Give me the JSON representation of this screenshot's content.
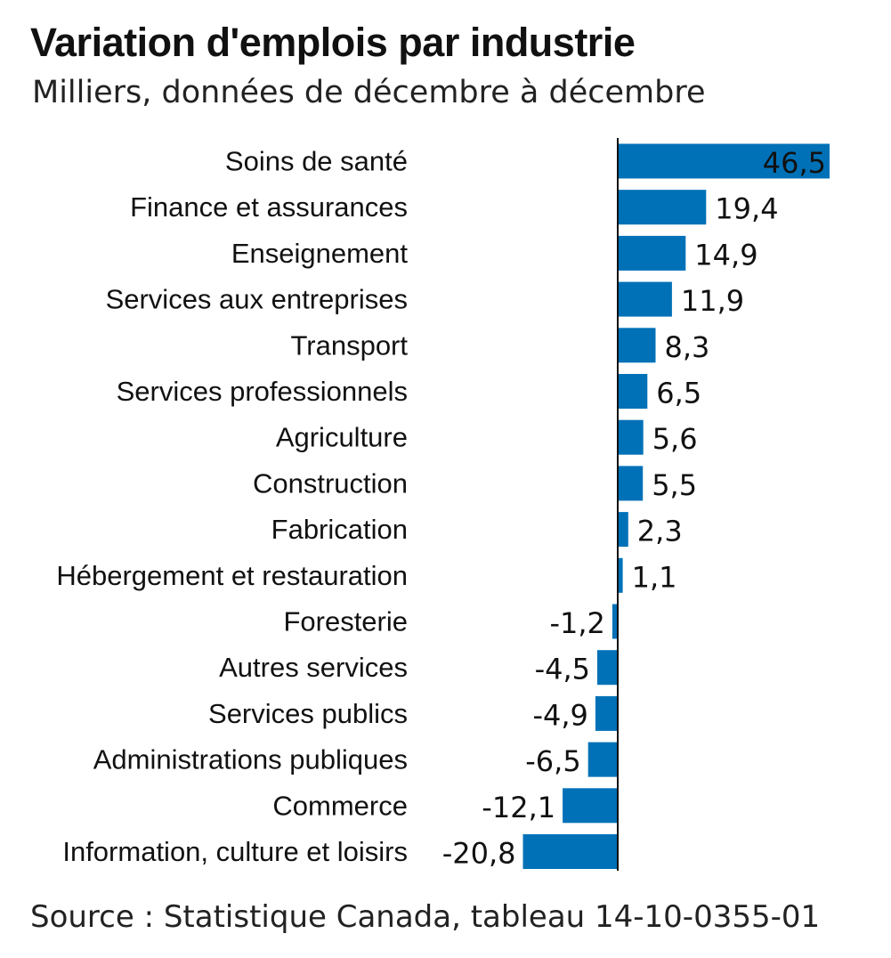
{
  "chart_data": {
    "type": "bar",
    "orientation": "horizontal",
    "title": "Variation d'emplois par industrie",
    "subtitle": "Milliers, données de décembre à décembre",
    "source": "Source : Statistique Canada, tableau 14-10-0355-01",
    "categories": [
      "Soins de santé",
      "Finance et assurances",
      "Enseignement",
      "Services aux entreprises",
      "Transport",
      "Services professionnels",
      "Agriculture",
      "Construction",
      "Fabrication",
      "Hébergement et restauration",
      "Foresterie",
      "Autres services",
      "Services publics",
      "Administrations publiques",
      "Commerce",
      "Information, culture et loisirs"
    ],
    "values": [
      46.5,
      19.4,
      14.9,
      11.9,
      8.3,
      6.5,
      5.6,
      5.5,
      2.3,
      1.1,
      -1.2,
      -4.5,
      -4.9,
      -6.5,
      -12.1,
      -20.8
    ],
    "value_labels": [
      "46,5",
      "19,4",
      "14,9",
      "11,9",
      "8,3",
      "6,5",
      "5,6",
      "5,5",
      "2,3",
      "1,1",
      "-1,2",
      "-4,5",
      "-4,9",
      "-6,5",
      "-12,1",
      "-20,8"
    ],
    "xlim": [
      -20.8,
      46.5
    ],
    "grid": false,
    "legend": "none",
    "colors": {
      "bar": "#0071b7",
      "axis": "#111111",
      "inside_label": "#ffffff",
      "text": "#111111"
    }
  }
}
